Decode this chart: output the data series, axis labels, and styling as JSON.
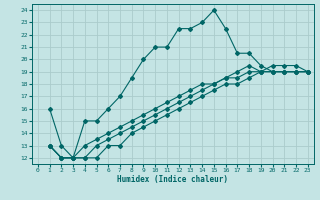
{
  "title": "",
  "xlabel": "Humidex (Indice chaleur)",
  "ylabel": "",
  "xlim": [
    -0.5,
    23.5
  ],
  "ylim": [
    11.5,
    24.5
  ],
  "xticks": [
    0,
    1,
    2,
    3,
    4,
    5,
    6,
    7,
    8,
    9,
    10,
    11,
    12,
    13,
    14,
    15,
    16,
    17,
    18,
    19,
    20,
    21,
    22,
    23
  ],
  "yticks": [
    12,
    13,
    14,
    15,
    16,
    17,
    18,
    19,
    20,
    21,
    22,
    23,
    24
  ],
  "bg_color": "#c4e4e4",
  "line_color": "#006666",
  "grid_color": "#aacccc",
  "lines": [
    {
      "x": [
        1,
        2,
        3,
        4,
        5,
        6,
        7,
        8,
        9,
        10,
        11,
        12,
        13,
        14,
        15,
        16,
        17,
        18,
        19,
        20,
        21,
        22,
        23
      ],
      "y": [
        16,
        13,
        12,
        15,
        15,
        16,
        17,
        18.5,
        20,
        21,
        21,
        22.5,
        22.5,
        23,
        24,
        22.5,
        20.5,
        20.5,
        19.5,
        19,
        19,
        19,
        19
      ]
    },
    {
      "x": [
        1,
        2,
        3,
        4,
        5,
        6,
        7,
        8,
        9,
        10,
        11,
        12,
        13,
        14,
        15,
        16,
        17,
        18,
        19,
        20,
        21,
        22,
        23
      ],
      "y": [
        13,
        12,
        12,
        13,
        13.5,
        14,
        14.5,
        15,
        15.5,
        16,
        16.5,
        17,
        17.5,
        18,
        18,
        18.5,
        19,
        19.5,
        19,
        19.5,
        19.5,
        19.5,
        19
      ]
    },
    {
      "x": [
        1,
        2,
        3,
        4,
        5,
        6,
        7,
        8,
        9,
        10,
        11,
        12,
        13,
        14,
        15,
        16,
        17,
        18,
        19,
        20,
        21,
        22,
        23
      ],
      "y": [
        13,
        12,
        12,
        12,
        13,
        13.5,
        14,
        14.5,
        15,
        15.5,
        16,
        16.5,
        17,
        17.5,
        18,
        18.5,
        18.5,
        19,
        19,
        19,
        19,
        19,
        19
      ]
    },
    {
      "x": [
        1,
        2,
        3,
        4,
        5,
        6,
        7,
        8,
        9,
        10,
        11,
        12,
        13,
        14,
        15,
        16,
        17,
        18,
        19,
        20,
        21,
        22,
        23
      ],
      "y": [
        13,
        12,
        12,
        12,
        12,
        13,
        13,
        14,
        14.5,
        15,
        15.5,
        16,
        16.5,
        17,
        17.5,
        18,
        18,
        18.5,
        19,
        19,
        19,
        19,
        19
      ]
    }
  ]
}
